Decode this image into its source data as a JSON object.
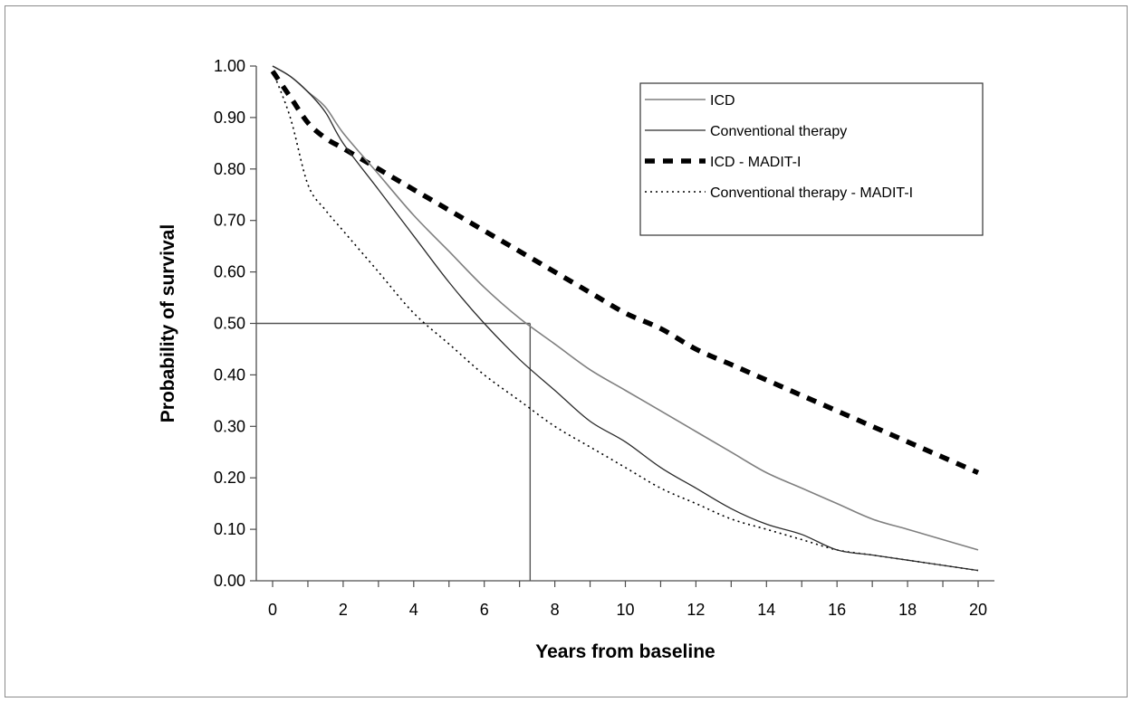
{
  "chart_data": {
    "type": "line",
    "title": "",
    "xlabel": "Years from baseline",
    "ylabel": "Probability of survival",
    "xlim": [
      0,
      20
    ],
    "ylim": [
      0,
      1
    ],
    "x_ticks": [
      0,
      2,
      4,
      6,
      8,
      10,
      12,
      14,
      16,
      18,
      20
    ],
    "x_tick_labels": [
      "0",
      "2",
      "4",
      "6",
      "8",
      "10",
      "12",
      "14",
      "16",
      "18",
      "20"
    ],
    "y_ticks": [
      0,
      0.1,
      0.2,
      0.3,
      0.4,
      0.5,
      0.6,
      0.7,
      0.8,
      0.9,
      1.0
    ],
    "y_tick_labels": [
      "0.00",
      "0.10",
      "0.20",
      "0.30",
      "0.40",
      "0.50",
      "0.60",
      "0.70",
      "0.80",
      "0.90",
      "1.00"
    ],
    "grid": false,
    "legend_position": "top-right",
    "series": [
      {
        "name": "ICD",
        "style": "solid-gray",
        "color": "#7f7f7f",
        "x": [
          0,
          0.5,
          1,
          1.5,
          2,
          3,
          4,
          5,
          6,
          7,
          8,
          9,
          10,
          11,
          12,
          13,
          14,
          15,
          16,
          17,
          18,
          19,
          20
        ],
        "y": [
          1.0,
          0.98,
          0.95,
          0.92,
          0.87,
          0.79,
          0.71,
          0.64,
          0.57,
          0.51,
          0.46,
          0.41,
          0.37,
          0.33,
          0.29,
          0.25,
          0.21,
          0.18,
          0.15,
          0.12,
          0.1,
          0.08,
          0.06
        ]
      },
      {
        "name": "Conventional therapy",
        "style": "solid-black",
        "color": "#2b2b2b",
        "x": [
          0,
          0.5,
          1,
          1.5,
          2,
          3,
          4,
          5,
          6,
          7,
          8,
          9,
          10,
          11,
          12,
          13,
          14,
          15,
          16,
          17,
          18,
          19,
          20
        ],
        "y": [
          1.0,
          0.98,
          0.95,
          0.91,
          0.85,
          0.76,
          0.67,
          0.58,
          0.5,
          0.43,
          0.37,
          0.31,
          0.27,
          0.22,
          0.18,
          0.14,
          0.11,
          0.09,
          0.06,
          0.05,
          0.04,
          0.03,
          0.02
        ]
      },
      {
        "name": "ICD - MADIT-I",
        "style": "dashed-bold",
        "color": "#000000",
        "x": [
          0,
          0.5,
          1,
          1.5,
          2,
          3,
          4,
          5,
          6,
          7,
          8,
          9,
          10,
          11,
          12,
          13,
          14,
          15,
          16,
          17,
          18,
          19,
          20
        ],
        "y": [
          0.99,
          0.94,
          0.89,
          0.86,
          0.84,
          0.8,
          0.76,
          0.72,
          0.68,
          0.64,
          0.6,
          0.56,
          0.52,
          0.49,
          0.45,
          0.42,
          0.39,
          0.36,
          0.33,
          0.3,
          0.27,
          0.24,
          0.21
        ]
      },
      {
        "name": "Conventional therapy  - MADIT-I",
        "style": "dotted",
        "color": "#000000",
        "x": [
          0,
          0.5,
          1,
          1.5,
          2,
          3,
          4,
          5,
          6,
          7,
          8,
          9,
          10,
          11,
          12,
          13,
          14,
          15,
          16,
          17,
          18,
          19,
          20
        ],
        "y": [
          0.99,
          0.9,
          0.77,
          0.72,
          0.68,
          0.6,
          0.52,
          0.46,
          0.4,
          0.35,
          0.3,
          0.26,
          0.22,
          0.18,
          0.15,
          0.12,
          0.1,
          0.08,
          0.06,
          0.05,
          0.04,
          0.03,
          0.02
        ]
      }
    ],
    "reference_lines": {
      "horizontal_y": 0.5,
      "vertical_x": 7.3,
      "color": "#555555"
    }
  }
}
